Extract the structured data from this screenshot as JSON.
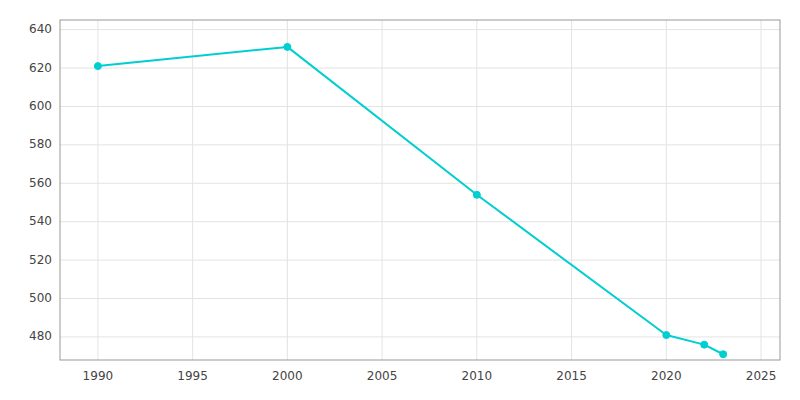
{
  "chart_data": {
    "type": "line",
    "x": [
      1990,
      2000,
      2010,
      2020,
      2022,
      2023
    ],
    "values": [
      621,
      631,
      554,
      481,
      476,
      471
    ],
    "color": "#00CED1",
    "marker": "circle",
    "xlim": [
      1988,
      2026
    ],
    "ylim": [
      468,
      645
    ],
    "xticks": [
      1990,
      1995,
      2000,
      2005,
      2010,
      2015,
      2020,
      2025
    ],
    "yticks": [
      480,
      500,
      520,
      540,
      560,
      580,
      600,
      620,
      640
    ],
    "grid": true
  }
}
